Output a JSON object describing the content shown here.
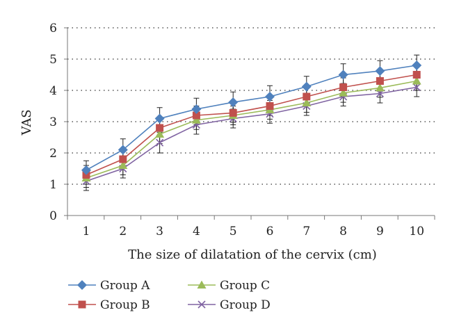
{
  "chart_data": {
    "type": "line",
    "title": "",
    "xlabel": "The size of dilatation of the cervix (cm)",
    "ylabel": "VAS",
    "x": [
      1,
      2,
      3,
      4,
      5,
      6,
      7,
      8,
      9,
      10
    ],
    "x_tick_labels": [
      "1",
      "2",
      "3",
      "4",
      "5",
      "6",
      "7",
      "8",
      "9",
      "10"
    ],
    "y_tick_labels": [
      "0",
      "1",
      "2",
      "3",
      "4",
      "5",
      "6"
    ],
    "ylim": [
      0,
      6
    ],
    "y_ticks": [
      0,
      1,
      2,
      3,
      4,
      5,
      6
    ],
    "grid": "horizontal dotted",
    "legend_position": "bottom-left",
    "series": [
      {
        "name": "Group A",
        "color": "#4F81BD",
        "marker": "diamond",
        "values": [
          1.45,
          2.1,
          3.1,
          3.4,
          3.62,
          3.8,
          4.12,
          4.5,
          4.62,
          4.8
        ],
        "errors": [
          0.3,
          0.35,
          0.35,
          0.35,
          0.33,
          0.35,
          0.33,
          0.35,
          0.33,
          0.33
        ]
      },
      {
        "name": "Group B",
        "color": "#C0504D",
        "marker": "square",
        "values": [
          1.3,
          1.8,
          2.8,
          3.2,
          3.28,
          3.5,
          3.8,
          4.1,
          4.3,
          4.5
        ],
        "errors": [
          0.3,
          0.3,
          0.3,
          0.3,
          0.3,
          0.3,
          0.3,
          0.3,
          0.3,
          0.3
        ]
      },
      {
        "name": "Group C",
        "color": "#9BBB59",
        "marker": "triangle",
        "values": [
          1.2,
          1.6,
          2.6,
          3.05,
          3.2,
          3.38,
          3.6,
          3.92,
          4.08,
          4.3
        ],
        "errors": [
          0.3,
          0.3,
          0.3,
          0.3,
          0.3,
          0.3,
          0.3,
          0.3,
          0.3,
          0.3
        ]
      },
      {
        "name": "Group D",
        "color": "#8064A2",
        "marker": "x",
        "values": [
          1.1,
          1.5,
          2.33,
          2.9,
          3.1,
          3.25,
          3.5,
          3.8,
          3.9,
          4.1
        ],
        "errors": [
          0.3,
          0.3,
          0.33,
          0.3,
          0.3,
          0.3,
          0.3,
          0.3,
          0.3,
          0.3
        ]
      }
    ]
  }
}
